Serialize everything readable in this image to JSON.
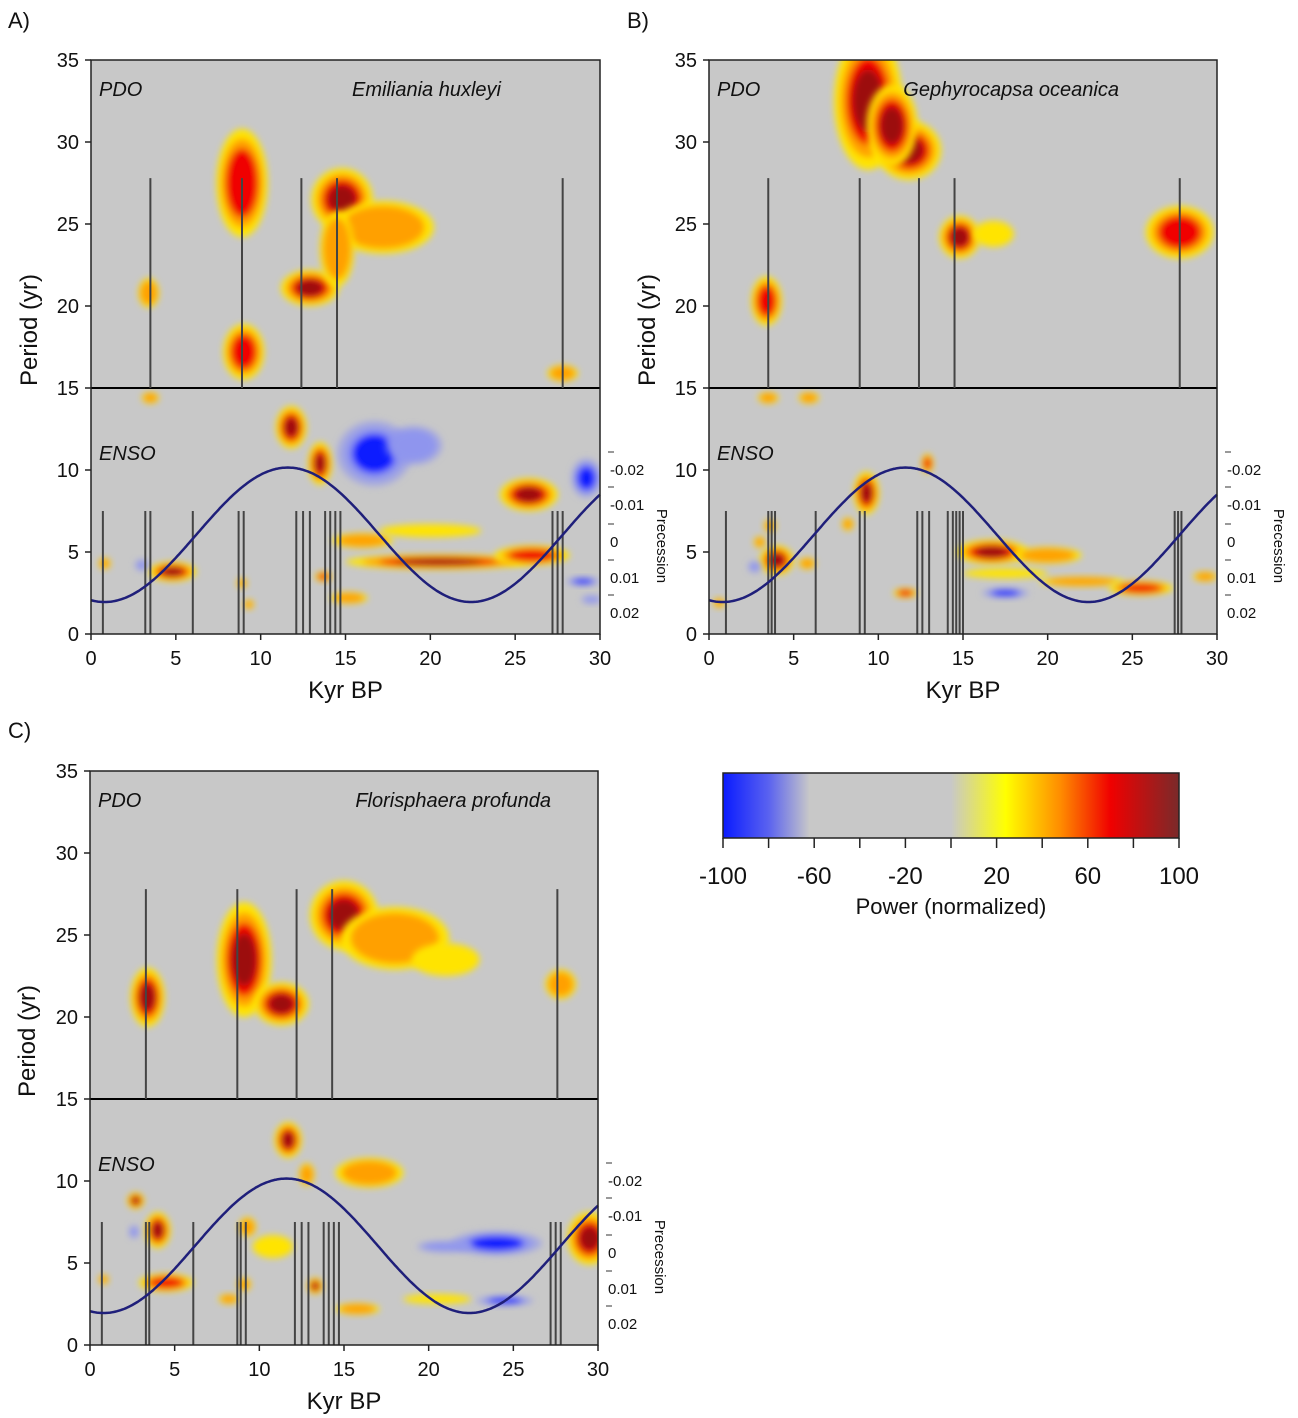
{
  "chart_data": [
    {
      "type": "heatmap",
      "panel_label": "A)",
      "species": "Emiliania huxleyi",
      "region_labels": {
        "upper": "PDO",
        "lower": "ENSO"
      },
      "xlabel": "Kyr BP",
      "ylabel": "Period (yr)",
      "xlim": [
        0,
        30
      ],
      "ylim": [
        0,
        35
      ],
      "x_ticks": [
        "0",
        "5",
        "10",
        "15",
        "20",
        "25",
        "30"
      ],
      "y_ticks": [
        "0",
        "5",
        "10",
        "15",
        "20",
        "25",
        "30",
        "35"
      ],
      "divider_period": 15,
      "grid": false,
      "secondary_axis": {
        "label": "Precession",
        "ticks": [
          "-0.02",
          "-0.01",
          "0",
          "0.01",
          "0.02"
        ]
      },
      "pdo_event_lines_kyr": [
        3.5,
        8.9,
        12.4,
        14.5,
        27.8
      ],
      "enso_event_lines_kyr": [
        0.7,
        3.2,
        3.5,
        6.0,
        8.7,
        9.0,
        12.1,
        12.5,
        12.9,
        13.8,
        14.1,
        14.4,
        14.7,
        27.2,
        27.5,
        27.8
      ],
      "blobs": [
        {
          "x": 3.4,
          "y": 20.8,
          "sx": 0.6,
          "sy": 0.9,
          "power": 55
        },
        {
          "x": 8.9,
          "y": 27.5,
          "sx": 1.5,
          "sy": 3.3,
          "power": 78
        },
        {
          "x": 9.0,
          "y": 17.2,
          "sx": 1.2,
          "sy": 1.7,
          "power": 72
        },
        {
          "x": 12.9,
          "y": 21.1,
          "sx": 1.7,
          "sy": 1.1,
          "power": 84
        },
        {
          "x": 14.8,
          "y": 26.5,
          "sx": 1.8,
          "sy": 1.9,
          "power": 82
        },
        {
          "x": 17.2,
          "y": 24.8,
          "sx": 3.0,
          "sy": 1.6,
          "power": 42
        },
        {
          "x": 14.5,
          "y": 23.5,
          "sx": 1.0,
          "sy": 2.3,
          "power": 50
        },
        {
          "x": 27.8,
          "y": 15.9,
          "sx": 0.9,
          "sy": 0.5,
          "power": 62
        },
        {
          "x": 3.5,
          "y": 14.4,
          "sx": 0.5,
          "sy": 0.35,
          "power": 58
        },
        {
          "x": 11.8,
          "y": 12.6,
          "sx": 0.9,
          "sy": 1.3,
          "power": 84
        },
        {
          "x": 13.5,
          "y": 10.4,
          "sx": 0.7,
          "sy": 1.3,
          "power": 86
        },
        {
          "x": 16.7,
          "y": 11.0,
          "sx": 2.2,
          "sy": 2.0,
          "power": -100
        },
        {
          "x": 19.0,
          "y": 11.5,
          "sx": 1.7,
          "sy": 1.2,
          "power": -45
        },
        {
          "x": 25.8,
          "y": 8.5,
          "sx": 1.7,
          "sy": 1.0,
          "power": 82
        },
        {
          "x": 29.2,
          "y": 9.5,
          "sx": 0.9,
          "sy": 1.2,
          "power": -95
        },
        {
          "x": 20.5,
          "y": 4.4,
          "sx": 5.5,
          "sy": 0.45,
          "power": 86
        },
        {
          "x": 26.0,
          "y": 4.8,
          "sx": 2.2,
          "sy": 0.6,
          "power": 70
        },
        {
          "x": 16.0,
          "y": 5.7,
          "sx": 1.8,
          "sy": 0.45,
          "power": 40
        },
        {
          "x": 20.0,
          "y": 6.3,
          "sx": 3.0,
          "sy": 0.4,
          "power": 30
        },
        {
          "x": 4.8,
          "y": 3.8,
          "sx": 1.4,
          "sy": 0.6,
          "power": 85
        },
        {
          "x": 0.8,
          "y": 4.3,
          "sx": 0.35,
          "sy": 0.35,
          "power": 55
        },
        {
          "x": 8.9,
          "y": 3.1,
          "sx": 0.3,
          "sy": 0.3,
          "power": 55
        },
        {
          "x": 9.3,
          "y": 1.8,
          "sx": 0.3,
          "sy": 0.3,
          "power": 55
        },
        {
          "x": 13.7,
          "y": 3.5,
          "sx": 0.5,
          "sy": 0.3,
          "power": 65
        },
        {
          "x": 15.2,
          "y": 2.2,
          "sx": 1.1,
          "sy": 0.35,
          "power": 45
        },
        {
          "x": 3.0,
          "y": 4.2,
          "sx": 0.4,
          "sy": 0.35,
          "power": -40
        },
        {
          "x": 29.0,
          "y": 3.2,
          "sx": 1.0,
          "sy": 0.25,
          "power": -80
        },
        {
          "x": 29.5,
          "y": 2.1,
          "sx": 0.6,
          "sy": 0.25,
          "power": -60
        }
      ]
    },
    {
      "type": "heatmap",
      "panel_label": "B)",
      "species": "Gephyrocapsa oceanica",
      "region_labels": {
        "upper": "PDO",
        "lower": "ENSO"
      },
      "xlabel": "Kyr BP",
      "ylabel": "Period (yr)",
      "xlim": [
        0,
        30
      ],
      "ylim": [
        0,
        35
      ],
      "x_ticks": [
        "0",
        "5",
        "10",
        "15",
        "20",
        "25",
        "30"
      ],
      "y_ticks": [
        "0",
        "5",
        "10",
        "15",
        "20",
        "25",
        "30",
        "35"
      ],
      "divider_period": 15,
      "grid": false,
      "secondary_axis": {
        "label": "Precession",
        "ticks": [
          "-0.02",
          "-0.01",
          "0",
          "0.01",
          "0.02"
        ]
      },
      "pdo_event_lines_kyr": [
        3.5,
        8.9,
        12.4,
        14.5,
        27.8
      ],
      "enso_event_lines_kyr": [
        1.0,
        3.5,
        3.7,
        3.9,
        6.3,
        8.9,
        9.2,
        12.3,
        12.6,
        13.0,
        14.1,
        14.4,
        14.6,
        14.8,
        15.0,
        27.5,
        27.7,
        27.9
      ],
      "blobs": [
        {
          "x": 9.4,
          "y": 32.5,
          "sx": 2.0,
          "sy": 4.2,
          "power": 88
        },
        {
          "x": 11.8,
          "y": 29.5,
          "sx": 1.9,
          "sy": 1.8,
          "power": 84
        },
        {
          "x": 10.8,
          "y": 31.0,
          "sx": 1.5,
          "sy": 2.5,
          "power": 80
        },
        {
          "x": 3.4,
          "y": 20.3,
          "sx": 0.9,
          "sy": 1.5,
          "power": 70
        },
        {
          "x": 14.8,
          "y": 24.2,
          "sx": 1.2,
          "sy": 1.3,
          "power": 80
        },
        {
          "x": 16.8,
          "y": 24.4,
          "sx": 1.2,
          "sy": 0.8,
          "power": 38
        },
        {
          "x": 27.8,
          "y": 24.5,
          "sx": 2.0,
          "sy": 1.6,
          "power": 74
        },
        {
          "x": 3.5,
          "y": 14.4,
          "sx": 0.6,
          "sy": 0.35,
          "power": 60
        },
        {
          "x": 5.9,
          "y": 14.4,
          "sx": 0.6,
          "sy": 0.35,
          "power": 60
        },
        {
          "x": 9.3,
          "y": 8.6,
          "sx": 0.75,
          "sy": 1.3,
          "power": 86
        },
        {
          "x": 12.9,
          "y": 10.4,
          "sx": 0.35,
          "sy": 0.6,
          "power": 70
        },
        {
          "x": 8.2,
          "y": 6.7,
          "sx": 0.35,
          "sy": 0.4,
          "power": 62
        },
        {
          "x": 3.6,
          "y": 6.6,
          "sx": 0.35,
          "sy": 0.4,
          "power": 62
        },
        {
          "x": 4.0,
          "y": 4.5,
          "sx": 1.0,
          "sy": 0.9,
          "power": 86
        },
        {
          "x": 3.0,
          "y": 5.6,
          "sx": 0.35,
          "sy": 0.35,
          "power": 50
        },
        {
          "x": 5.8,
          "y": 4.3,
          "sx": 0.5,
          "sy": 0.35,
          "power": 55
        },
        {
          "x": 2.7,
          "y": 4.1,
          "sx": 0.4,
          "sy": 0.35,
          "power": -50
        },
        {
          "x": 16.7,
          "y": 5.0,
          "sx": 2.1,
          "sy": 0.75,
          "power": 84
        },
        {
          "x": 20.0,
          "y": 4.8,
          "sx": 2.0,
          "sy": 0.5,
          "power": 48
        },
        {
          "x": 17.5,
          "y": 3.7,
          "sx": 2.5,
          "sy": 0.3,
          "power": 38
        },
        {
          "x": 22.0,
          "y": 3.2,
          "sx": 2.5,
          "sy": 0.3,
          "power": 48
        },
        {
          "x": 25.5,
          "y": 2.8,
          "sx": 1.9,
          "sy": 0.45,
          "power": 72
        },
        {
          "x": 29.3,
          "y": 3.5,
          "sx": 0.7,
          "sy": 0.3,
          "power": 48
        },
        {
          "x": 11.6,
          "y": 2.5,
          "sx": 0.7,
          "sy": 0.3,
          "power": 68
        },
        {
          "x": 17.5,
          "y": 2.5,
          "sx": 1.4,
          "sy": 0.3,
          "power": -70
        },
        {
          "x": 0.6,
          "y": 1.9,
          "sx": 0.35,
          "sy": 0.3,
          "power": 50
        }
      ]
    },
    {
      "type": "heatmap",
      "panel_label": "C)",
      "species": "Florisphaera profunda",
      "region_labels": {
        "upper": "PDO",
        "lower": "ENSO"
      },
      "xlabel": "Kyr BP",
      "ylabel": "Period (yr)",
      "xlim": [
        0,
        30
      ],
      "ylim": [
        0,
        35
      ],
      "x_ticks": [
        "0",
        "5",
        "10",
        "15",
        "20",
        "25",
        "30"
      ],
      "y_ticks": [
        "0",
        "5",
        "10",
        "15",
        "20",
        "25",
        "30",
        "35"
      ],
      "divider_period": 15,
      "grid": false,
      "secondary_axis": {
        "label": "Precession",
        "ticks": [
          "-0.02",
          "-0.01",
          "0",
          "0.01",
          "0.02"
        ]
      },
      "pdo_event_lines_kyr": [
        3.3,
        8.7,
        12.2,
        14.3,
        27.6
      ],
      "enso_event_lines_kyr": [
        0.7,
        3.3,
        3.5,
        6.1,
        8.7,
        8.9,
        9.2,
        12.1,
        12.5,
        12.9,
        13.8,
        14.1,
        14.4,
        14.7,
        27.2,
        27.5,
        27.8
      ],
      "blobs": [
        {
          "x": 3.4,
          "y": 21.2,
          "sx": 1.0,
          "sy": 1.8,
          "power": 82
        },
        {
          "x": 9.1,
          "y": 23.5,
          "sx": 1.6,
          "sy": 3.5,
          "power": 85
        },
        {
          "x": 11.3,
          "y": 20.8,
          "sx": 1.6,
          "sy": 1.3,
          "power": 80
        },
        {
          "x": 15.0,
          "y": 26.2,
          "sx": 2.0,
          "sy": 2.1,
          "power": 90
        },
        {
          "x": 18.0,
          "y": 24.8,
          "sx": 3.2,
          "sy": 1.9,
          "power": 55
        },
        {
          "x": 21.0,
          "y": 23.5,
          "sx": 2.0,
          "sy": 1.0,
          "power": 32
        },
        {
          "x": 27.8,
          "y": 22.0,
          "sx": 0.9,
          "sy": 0.9,
          "power": 48
        },
        {
          "x": 11.7,
          "y": 12.5,
          "sx": 0.8,
          "sy": 1.1,
          "power": 80
        },
        {
          "x": 12.8,
          "y": 10.4,
          "sx": 0.45,
          "sy": 0.7,
          "power": 60
        },
        {
          "x": 16.5,
          "y": 10.5,
          "sx": 2.0,
          "sy": 0.9,
          "power": 45
        },
        {
          "x": 2.7,
          "y": 8.8,
          "sx": 0.5,
          "sy": 0.5,
          "power": 80
        },
        {
          "x": 4.0,
          "y": 7.0,
          "sx": 0.75,
          "sy": 1.1,
          "power": 86
        },
        {
          "x": 4.5,
          "y": 3.8,
          "sx": 1.6,
          "sy": 0.55,
          "power": 70
        },
        {
          "x": 9.3,
          "y": 7.2,
          "sx": 0.5,
          "sy": 0.6,
          "power": 45
        },
        {
          "x": 10.8,
          "y": 6.0,
          "sx": 1.2,
          "sy": 0.7,
          "power": 38
        },
        {
          "x": 9.1,
          "y": 3.7,
          "sx": 0.4,
          "sy": 0.4,
          "power": 62
        },
        {
          "x": 8.2,
          "y": 2.8,
          "sx": 0.6,
          "sy": 0.3,
          "power": 40
        },
        {
          "x": 13.3,
          "y": 3.6,
          "sx": 0.45,
          "sy": 0.5,
          "power": 85
        },
        {
          "x": 15.8,
          "y": 2.2,
          "sx": 1.3,
          "sy": 0.35,
          "power": 42
        },
        {
          "x": 20.5,
          "y": 2.8,
          "sx": 2.0,
          "sy": 0.3,
          "power": 32
        },
        {
          "x": 24.0,
          "y": 6.2,
          "sx": 2.7,
          "sy": 0.75,
          "power": -100
        },
        {
          "x": 21.0,
          "y": 6.0,
          "sx": 1.7,
          "sy": 0.35,
          "power": -45
        },
        {
          "x": 24.5,
          "y": 2.7,
          "sx": 1.7,
          "sy": 0.3,
          "power": -78
        },
        {
          "x": 2.6,
          "y": 6.9,
          "sx": 0.3,
          "sy": 0.4,
          "power": -50
        },
        {
          "x": 29.5,
          "y": 6.5,
          "sx": 1.3,
          "sy": 1.6,
          "power": 94
        },
        {
          "x": 0.8,
          "y": 4.0,
          "sx": 0.3,
          "sy": 0.3,
          "power": 45
        }
      ]
    }
  ],
  "colorbar": {
    "label": "Power (normalized)",
    "range": [
      -100,
      100
    ],
    "tick_labels": [
      "-100",
      "-60",
      "-20",
      "20",
      "60",
      "100"
    ],
    "colors": {
      "blue": "#0a1bff",
      "grey": "#c8c8c8",
      "yellow": "#ffff00",
      "orange": "#ff8c00",
      "red": "#f00000",
      "darkred": "#7a2a2a"
    }
  },
  "precession_curve": {
    "color": "#1f1f7a",
    "mean_period": 1.95,
    "amplitude": 8.2,
    "cycle_kyr": 21.6,
    "min_at_kyr": 0.8
  }
}
